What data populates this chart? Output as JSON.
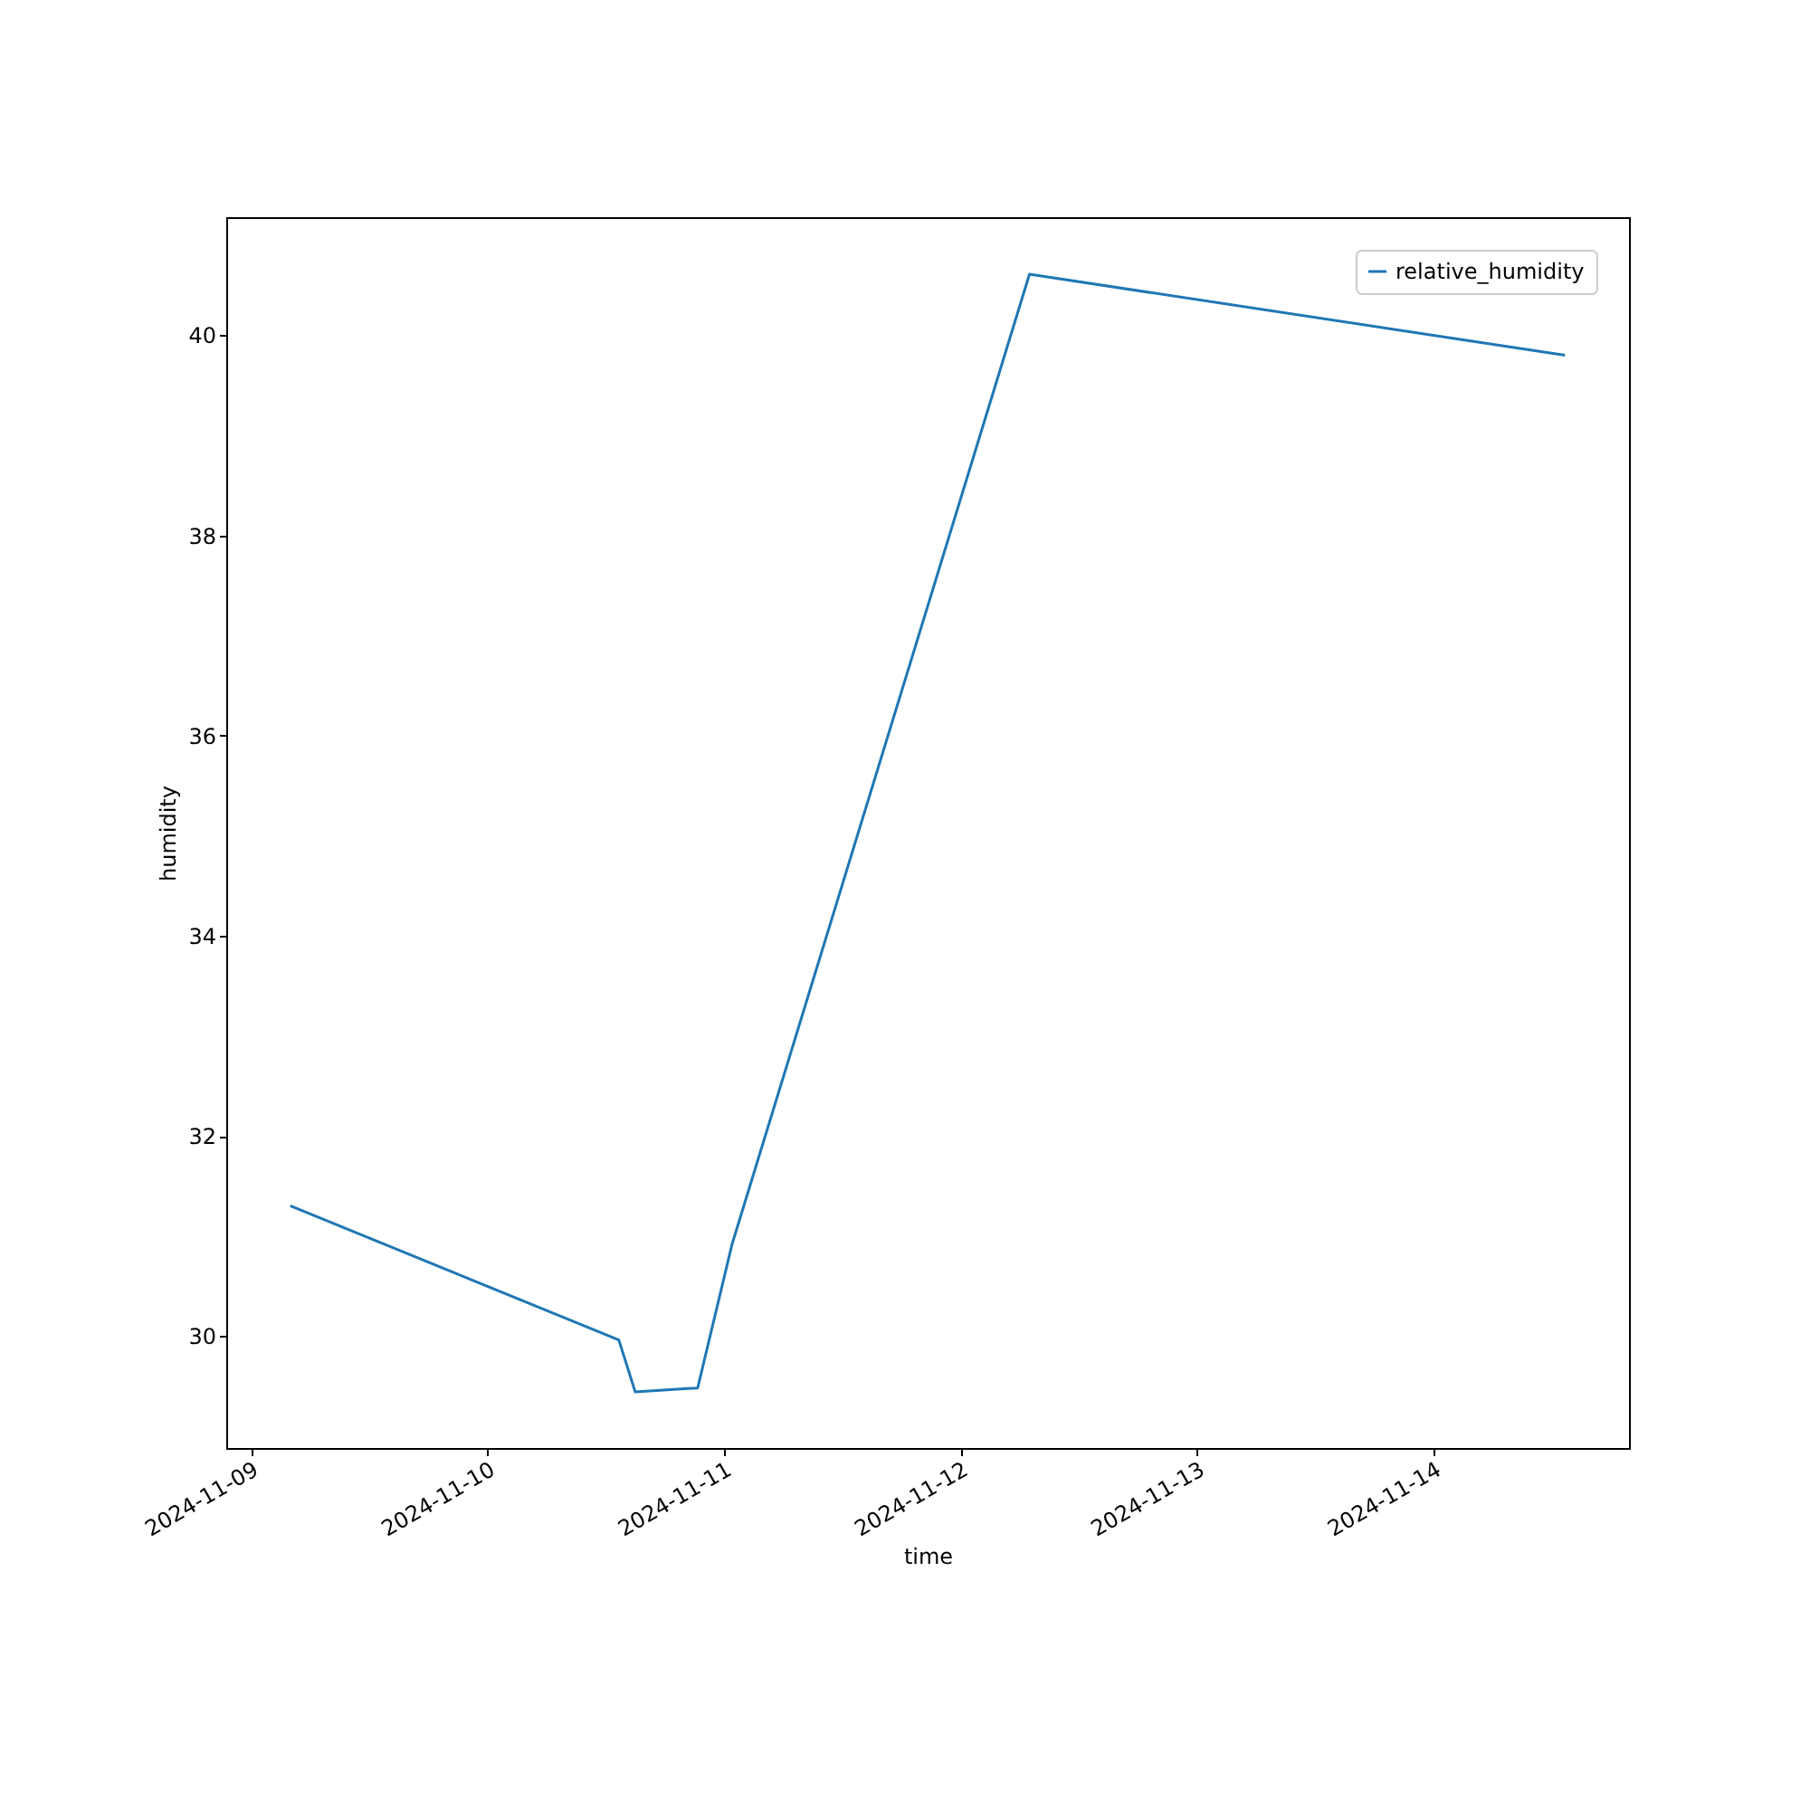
{
  "chart_data": {
    "type": "line",
    "xlabel": "time",
    "ylabel": "humidity",
    "x": [
      "2024-11-09T04:00",
      "2024-11-10T13:20",
      "2024-11-10T15:00",
      "2024-11-10T21:20",
      "2024-11-11T00:50",
      "2024-11-12T07:00",
      "2024-11-14T13:20"
    ],
    "series": [
      {
        "name": "relative_humidity",
        "color": "#1f77b4",
        "values": [
          31.3,
          29.96,
          29.44,
          29.48,
          30.92,
          40.61,
          39.8
        ]
      }
    ],
    "xlim": [
      "2024-11-08T21:30",
      "2024-11-14T19:50"
    ],
    "xticks": [
      "2024-11-09",
      "2024-11-10",
      "2024-11-11",
      "2024-11-12",
      "2024-11-13",
      "2024-11-14"
    ],
    "ylim": [
      28.88,
      41.18
    ],
    "yticks": [
      30,
      32,
      34,
      36,
      38,
      40
    ],
    "grid": false,
    "legend": "top right",
    "marker": "none",
    "line_style": "solid"
  }
}
